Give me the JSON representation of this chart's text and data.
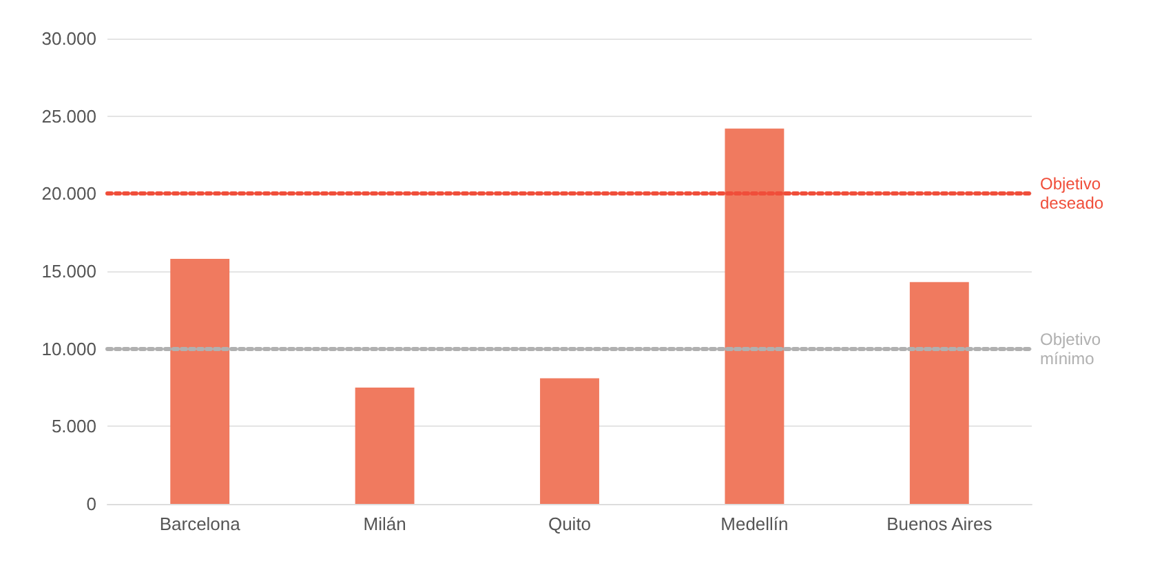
{
  "chart_data": {
    "type": "bar",
    "categories": [
      "Barcelona",
      "Milán",
      "Quito",
      "Medellín",
      "Buenos Aires"
    ],
    "values": [
      15800,
      7500,
      8100,
      24200,
      14300
    ],
    "color": "#f07a5f",
    "ylim": [
      0,
      30000
    ],
    "yticks": [
      0,
      {
        "value": 5000,
        "label": "5.000"
      },
      {
        "value": 10000,
        "label": "10.000"
      },
      {
        "value": 15000,
        "label": "15.000"
      },
      {
        "value": 20000,
        "label": "20.000"
      },
      {
        "value": 25000,
        "label": "25.000"
      },
      {
        "value": 30000,
        "label": "30.000"
      }
    ],
    "grid": "y",
    "ref_lines": [
      {
        "axis": "y",
        "value": 20000,
        "label": "Objetivo\ndeseado",
        "color": "#f04e3a",
        "line_style": "dotted"
      },
      {
        "axis": "y",
        "value": 10000,
        "label": "Objetivo\nmínimo",
        "color": "#b0b0b0",
        "line_style": "dotted"
      }
    ]
  }
}
